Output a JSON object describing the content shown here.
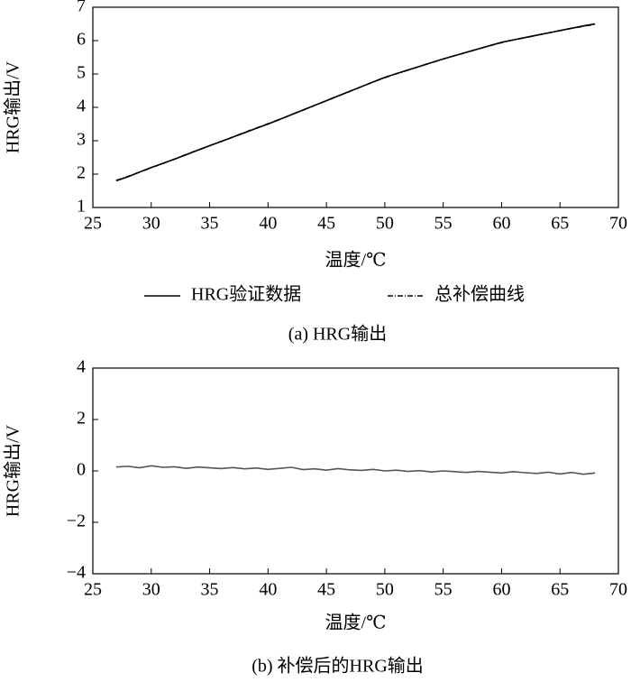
{
  "chart_data": [
    {
      "type": "line",
      "caption": "(a) HRG输出",
      "xlabel": "温度/℃",
      "ylabel": "HRG输出/V",
      "x": [
        27,
        28,
        29,
        30,
        31,
        32,
        33,
        34,
        35,
        36,
        37,
        38,
        39,
        40,
        41,
        42,
        43,
        44,
        45,
        46,
        47,
        48,
        49,
        50,
        51,
        52,
        53,
        54,
        55,
        56,
        57,
        58,
        59,
        60,
        61,
        62,
        63,
        64,
        65,
        66,
        67,
        68
      ],
      "series": [
        {
          "name": "HRG验证数据",
          "color": "#000000",
          "style": "solid",
          "values": [
            1.8,
            1.92,
            2.06,
            2.2,
            2.32,
            2.45,
            2.58,
            2.72,
            2.85,
            2.98,
            3.11,
            3.24,
            3.37,
            3.5,
            3.64,
            3.78,
            3.92,
            4.06,
            4.2,
            4.34,
            4.48,
            4.62,
            4.76,
            4.9,
            5.01,
            5.12,
            5.23,
            5.34,
            5.45,
            5.55,
            5.65,
            5.75,
            5.85,
            5.95,
            6.02,
            6.09,
            6.16,
            6.23,
            6.3,
            6.37,
            6.44,
            6.5
          ]
        },
        {
          "name": "总补偿曲线",
          "color": "#000000",
          "style": "dashdot",
          "values": [
            1.81,
            1.93,
            2.06,
            2.19,
            2.32,
            2.45,
            2.59,
            2.72,
            2.85,
            2.98,
            3.11,
            3.25,
            3.38,
            3.51,
            3.64,
            3.78,
            3.92,
            4.06,
            4.2,
            4.34,
            4.48,
            4.62,
            4.76,
            4.89,
            5.01,
            5.12,
            5.23,
            5.34,
            5.45,
            5.55,
            5.65,
            5.75,
            5.85,
            5.94,
            6.02,
            6.09,
            6.16,
            6.23,
            6.3,
            6.37,
            6.43,
            6.49
          ]
        }
      ],
      "xlim": [
        25,
        70
      ],
      "xticks": [
        25,
        30,
        35,
        40,
        45,
        50,
        55,
        60,
        65,
        70
      ],
      "ylim": [
        1,
        7
      ],
      "yticks": [
        1,
        2,
        3,
        4,
        5,
        6,
        7
      ]
    },
    {
      "type": "line",
      "caption": "(b) 补偿后的HRG输出",
      "xlabel": "温度/℃",
      "ylabel": "HRG输出/V",
      "x": [
        27,
        28,
        29,
        30,
        31,
        32,
        33,
        34,
        35,
        36,
        37,
        38,
        39,
        40,
        41,
        42,
        43,
        44,
        45,
        46,
        47,
        48,
        49,
        50,
        51,
        52,
        53,
        54,
        55,
        56,
        57,
        58,
        59,
        60,
        61,
        62,
        63,
        64,
        65,
        66,
        67,
        68
      ],
      "series": [
        {
          "name": null,
          "color": "#555555",
          "style": "solid",
          "values": [
            0.15,
            0.18,
            0.12,
            0.2,
            0.14,
            0.16,
            0.1,
            0.15,
            0.12,
            0.09,
            0.13,
            0.08,
            0.11,
            0.06,
            0.1,
            0.14,
            0.05,
            0.08,
            0.03,
            0.09,
            0.04,
            0.02,
            0.06,
            0.0,
            0.03,
            -0.02,
            0.01,
            -0.04,
            0.0,
            -0.03,
            -0.06,
            -0.02,
            -0.05,
            -0.08,
            -0.03,
            -0.07,
            -0.1,
            -0.05,
            -0.12,
            -0.06,
            -0.13,
            -0.08
          ]
        }
      ],
      "xlim": [
        25,
        70
      ],
      "xticks": [
        25,
        30,
        35,
        40,
        45,
        50,
        55,
        60,
        65,
        70
      ],
      "ylim": [
        -4,
        4
      ],
      "yticks": [
        {
          "value": -4,
          "label": "−4"
        },
        {
          "value": -2,
          "label": "−2"
        },
        0,
        2,
        4
      ]
    }
  ]
}
